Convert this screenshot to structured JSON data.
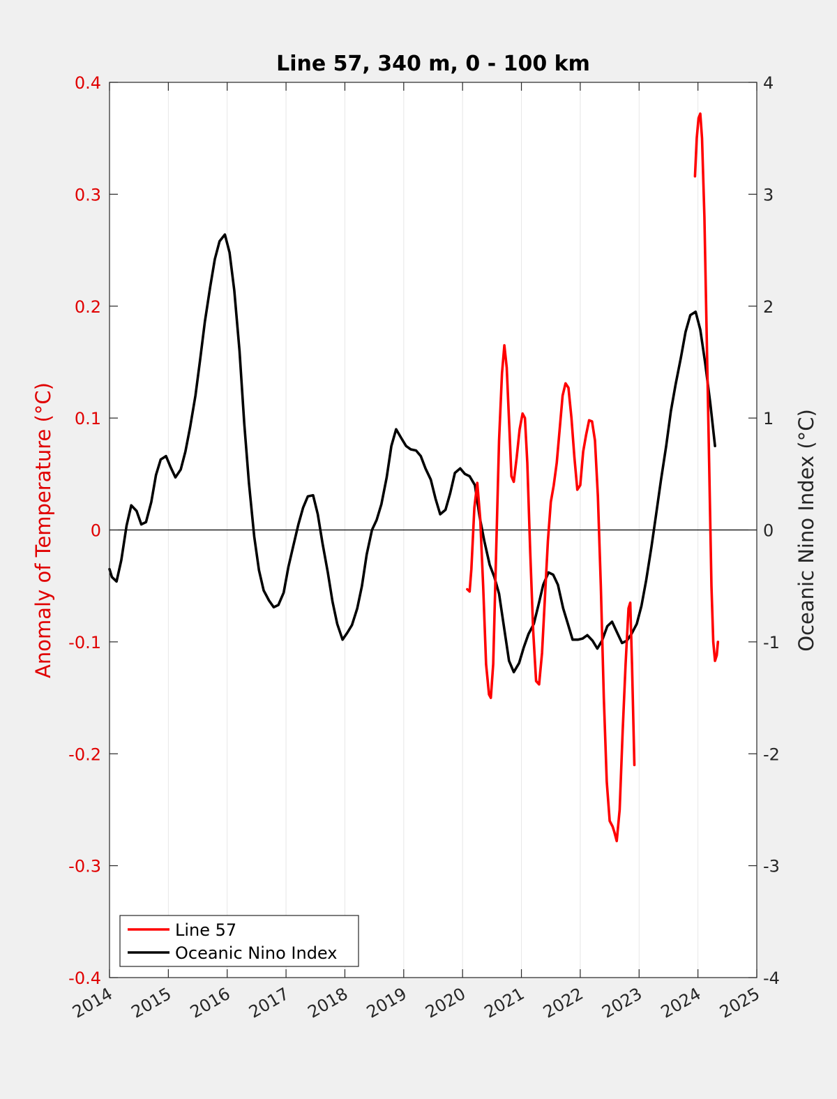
{
  "chart_data": {
    "type": "line",
    "title": "Line 57, 340 m, 0 - 100 km",
    "xlabel": "",
    "ylabel_left": "Anomaly of Temperature (°C)",
    "ylabel_right": "Oceanic Nino Index (°C)",
    "xlim": [
      2014,
      2025
    ],
    "ylim_left": [
      -0.4,
      0.4
    ],
    "ylim_right": [
      -4,
      4
    ],
    "x_ticks": [
      "2014",
      "2015",
      "2016",
      "2017",
      "2018",
      "2019",
      "2020",
      "2021",
      "2022",
      "2023",
      "2024",
      "2025"
    ],
    "y_left_ticks": [
      "-0.4",
      "-0.3",
      "-0.2",
      "-0.1",
      "0",
      "0.1",
      "0.2",
      "0.3",
      "0.4"
    ],
    "y_right_ticks": [
      "-4",
      "-3",
      "-2",
      "-1",
      "0",
      "1",
      "2",
      "3",
      "4"
    ],
    "grid": "vertical",
    "zero_line": true,
    "legend_position": "bottom-left",
    "colors": {
      "line57": "#ff0000",
      "oni": "#000000",
      "left_axis": "#e00000"
    },
    "series": [
      {
        "name": "Line 57",
        "axis": "left",
        "color": "#ff0000",
        "segments": [
          [
            [
              2020.08,
              -0.053
            ],
            [
              2020.12,
              -0.055
            ],
            [
              2020.15,
              -0.035
            ],
            [
              2020.2,
              0.02
            ],
            [
              2020.25,
              0.042
            ],
            [
              2020.3,
              0.01
            ],
            [
              2020.35,
              -0.05
            ],
            [
              2020.4,
              -0.12
            ],
            [
              2020.45,
              -0.147
            ],
            [
              2020.48,
              -0.15
            ],
            [
              2020.52,
              -0.12
            ],
            [
              2020.57,
              -0.02
            ],
            [
              2020.62,
              0.08
            ],
            [
              2020.67,
              0.14
            ],
            [
              2020.71,
              0.165
            ],
            [
              2020.75,
              0.145
            ],
            [
              2020.8,
              0.085
            ],
            [
              2020.83,
              0.048
            ],
            [
              2020.87,
              0.043
            ],
            [
              2020.92,
              0.065
            ],
            [
              2020.97,
              0.09
            ],
            [
              2021.02,
              0.104
            ],
            [
              2021.06,
              0.1
            ],
            [
              2021.1,
              0.06
            ],
            [
              2021.15,
              -0.02
            ],
            [
              2021.2,
              -0.09
            ],
            [
              2021.25,
              -0.135
            ],
            [
              2021.3,
              -0.138
            ],
            [
              2021.35,
              -0.11
            ],
            [
              2021.4,
              -0.06
            ],
            [
              2021.45,
              -0.01
            ],
            [
              2021.5,
              0.025
            ],
            [
              2021.55,
              0.04
            ],
            [
              2021.6,
              0.06
            ],
            [
              2021.65,
              0.09
            ],
            [
              2021.7,
              0.12
            ],
            [
              2021.75,
              0.131
            ],
            [
              2021.8,
              0.127
            ],
            [
              2021.85,
              0.1
            ],
            [
              2021.9,
              0.065
            ],
            [
              2021.95,
              0.036
            ],
            [
              2022.0,
              0.04
            ],
            [
              2022.05,
              0.07
            ],
            [
              2022.1,
              0.085
            ],
            [
              2022.15,
              0.098
            ],
            [
              2022.2,
              0.097
            ],
            [
              2022.25,
              0.08
            ],
            [
              2022.3,
              0.03
            ],
            [
              2022.35,
              -0.05
            ],
            [
              2022.4,
              -0.15
            ],
            [
              2022.45,
              -0.225
            ],
            [
              2022.5,
              -0.26
            ],
            [
              2022.55,
              -0.265
            ],
            [
              2022.58,
              -0.27
            ],
            [
              2022.62,
              -0.278
            ],
            [
              2022.67,
              -0.25
            ],
            [
              2022.72,
              -0.18
            ],
            [
              2022.77,
              -0.12
            ],
            [
              2022.82,
              -0.07
            ],
            [
              2022.85,
              -0.065
            ],
            [
              2022.88,
              -0.12
            ],
            [
              2022.92,
              -0.21
            ]
          ],
          [
            [
              2023.95,
              0.316
            ],
            [
              2023.98,
              0.35
            ],
            [
              2024.01,
              0.368
            ],
            [
              2024.04,
              0.372
            ],
            [
              2024.07,
              0.35
            ],
            [
              2024.11,
              0.28
            ],
            [
              2024.15,
              0.17
            ],
            [
              2024.19,
              0.06
            ],
            [
              2024.23,
              -0.05
            ],
            [
              2024.26,
              -0.1
            ],
            [
              2024.29,
              -0.117
            ],
            [
              2024.32,
              -0.112
            ],
            [
              2024.34,
              -0.1
            ]
          ]
        ]
      },
      {
        "name": "Oceanic Nino Index",
        "axis": "right",
        "color": "#000000",
        "points": [
          [
            2014.0,
            -0.35
          ],
          [
            2014.04,
            -0.42
          ],
          [
            2014.12,
            -0.46
          ],
          [
            2014.2,
            -0.27
          ],
          [
            2014.29,
            0.04
          ],
          [
            2014.37,
            0.22
          ],
          [
            2014.46,
            0.17
          ],
          [
            2014.54,
            0.05
          ],
          [
            2014.62,
            0.07
          ],
          [
            2014.71,
            0.25
          ],
          [
            2014.79,
            0.49
          ],
          [
            2014.87,
            0.63
          ],
          [
            2014.96,
            0.66
          ],
          [
            2015.04,
            0.56
          ],
          [
            2015.12,
            0.47
          ],
          [
            2015.21,
            0.54
          ],
          [
            2015.29,
            0.7
          ],
          [
            2015.37,
            0.92
          ],
          [
            2015.46,
            1.2
          ],
          [
            2015.54,
            1.52
          ],
          [
            2015.62,
            1.86
          ],
          [
            2015.71,
            2.17
          ],
          [
            2015.79,
            2.42
          ],
          [
            2015.87,
            2.58
          ],
          [
            2015.96,
            2.64
          ],
          [
            2016.04,
            2.48
          ],
          [
            2016.12,
            2.14
          ],
          [
            2016.21,
            1.6
          ],
          [
            2016.29,
            0.95
          ],
          [
            2016.37,
            0.42
          ],
          [
            2016.46,
            -0.06
          ],
          [
            2016.54,
            -0.36
          ],
          [
            2016.62,
            -0.54
          ],
          [
            2016.71,
            -0.63
          ],
          [
            2016.79,
            -0.69
          ],
          [
            2016.87,
            -0.67
          ],
          [
            2016.96,
            -0.56
          ],
          [
            2017.04,
            -0.33
          ],
          [
            2017.12,
            -0.15
          ],
          [
            2017.21,
            0.05
          ],
          [
            2017.29,
            0.2
          ],
          [
            2017.37,
            0.3
          ],
          [
            2017.46,
            0.31
          ],
          [
            2017.54,
            0.14
          ],
          [
            2017.62,
            -0.12
          ],
          [
            2017.71,
            -0.38
          ],
          [
            2017.79,
            -0.64
          ],
          [
            2017.87,
            -0.84
          ],
          [
            2017.96,
            -0.98
          ],
          [
            2018.04,
            -0.92
          ],
          [
            2018.12,
            -0.85
          ],
          [
            2018.21,
            -0.7
          ],
          [
            2018.29,
            -0.5
          ],
          [
            2018.37,
            -0.22
          ],
          [
            2018.46,
            0.0
          ],
          [
            2018.54,
            0.09
          ],
          [
            2018.62,
            0.23
          ],
          [
            2018.71,
            0.47
          ],
          [
            2018.79,
            0.75
          ],
          [
            2018.87,
            0.9
          ],
          [
            2018.96,
            0.82
          ],
          [
            2019.04,
            0.75
          ],
          [
            2019.12,
            0.72
          ],
          [
            2019.21,
            0.71
          ],
          [
            2019.29,
            0.66
          ],
          [
            2019.37,
            0.55
          ],
          [
            2019.46,
            0.45
          ],
          [
            2019.54,
            0.28
          ],
          [
            2019.62,
            0.14
          ],
          [
            2019.71,
            0.18
          ],
          [
            2019.79,
            0.33
          ],
          [
            2019.87,
            0.51
          ],
          [
            2019.96,
            0.55
          ],
          [
            2020.04,
            0.5
          ],
          [
            2020.12,
            0.48
          ],
          [
            2020.21,
            0.4
          ],
          [
            2020.29,
            0.12
          ],
          [
            2020.37,
            -0.1
          ],
          [
            2020.46,
            -0.31
          ],
          [
            2020.54,
            -0.42
          ],
          [
            2020.62,
            -0.57
          ],
          [
            2020.71,
            -0.89
          ],
          [
            2020.79,
            -1.17
          ],
          [
            2020.87,
            -1.27
          ],
          [
            2020.96,
            -1.19
          ],
          [
            2021.04,
            -1.05
          ],
          [
            2021.12,
            -0.93
          ],
          [
            2021.21,
            -0.84
          ],
          [
            2021.29,
            -0.67
          ],
          [
            2021.37,
            -0.49
          ],
          [
            2021.46,
            -0.38
          ],
          [
            2021.54,
            -0.4
          ],
          [
            2021.62,
            -0.49
          ],
          [
            2021.71,
            -0.7
          ],
          [
            2021.79,
            -0.84
          ],
          [
            2021.87,
            -0.98
          ],
          [
            2021.96,
            -0.98
          ],
          [
            2022.04,
            -0.97
          ],
          [
            2022.12,
            -0.94
          ],
          [
            2022.21,
            -0.99
          ],
          [
            2022.29,
            -1.06
          ],
          [
            2022.37,
            -0.99
          ],
          [
            2022.46,
            -0.86
          ],
          [
            2022.54,
            -0.82
          ],
          [
            2022.62,
            -0.91
          ],
          [
            2022.71,
            -1.01
          ],
          [
            2022.79,
            -0.99
          ],
          [
            2022.87,
            -0.93
          ],
          [
            2022.96,
            -0.84
          ],
          [
            2023.04,
            -0.68
          ],
          [
            2023.12,
            -0.45
          ],
          [
            2023.21,
            -0.15
          ],
          [
            2023.29,
            0.14
          ],
          [
            2023.37,
            0.44
          ],
          [
            2023.46,
            0.75
          ],
          [
            2023.54,
            1.06
          ],
          [
            2023.62,
            1.3
          ],
          [
            2023.71,
            1.54
          ],
          [
            2023.79,
            1.77
          ],
          [
            2023.87,
            1.92
          ],
          [
            2023.96,
            1.95
          ],
          [
            2024.04,
            1.79
          ],
          [
            2024.12,
            1.5
          ],
          [
            2024.21,
            1.13
          ],
          [
            2024.29,
            0.75
          ]
        ]
      }
    ]
  }
}
